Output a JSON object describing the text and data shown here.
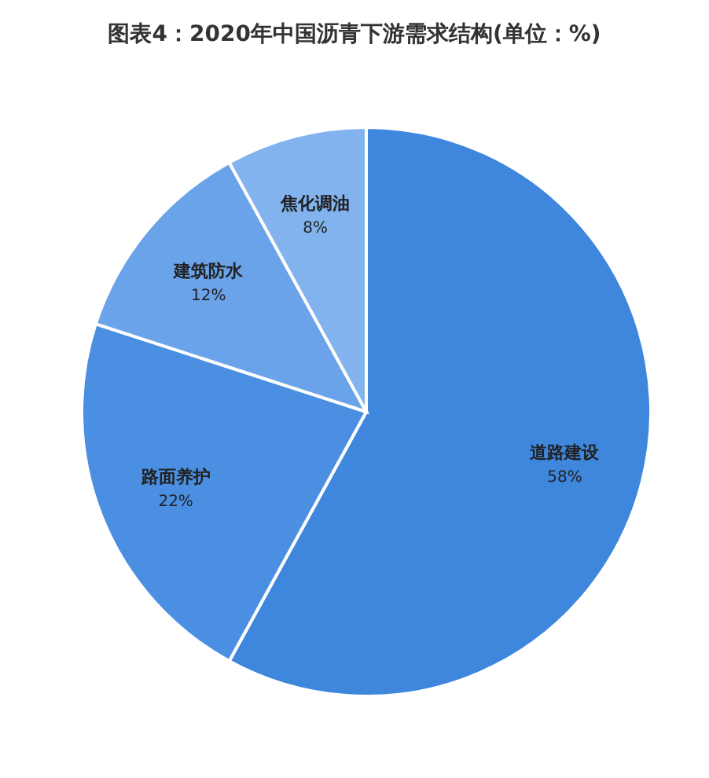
{
  "chart_data": {
    "type": "pie",
    "title": "图表4：2020年中国沥青下游需求结构(单位：%)",
    "categories": [
      "道路建设",
      "路面养护",
      "建筑防水",
      "焦化调油"
    ],
    "values": [
      58,
      22,
      12,
      8
    ],
    "colors": [
      "#3f86dd",
      "#4a8fe2",
      "#6aa3ea",
      "#82b3ee"
    ],
    "value_labels": [
      "58%",
      "22%",
      "12%",
      "8%"
    ]
  }
}
